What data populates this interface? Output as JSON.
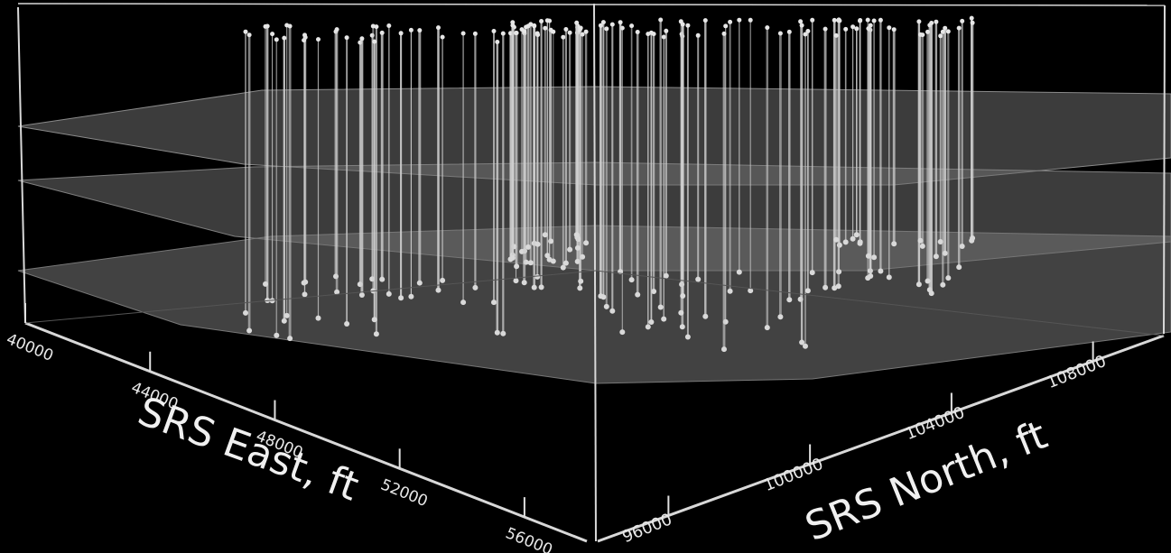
{
  "chart_data": {
    "type": "scatter",
    "subtype": "3d-well-stratigraphy",
    "title": "",
    "xlabel": "SRS East, ft",
    "ylabel": "SRS North, ft",
    "x_ticks": [
      "40000",
      "44000",
      "48000",
      "52000",
      "56000"
    ],
    "y_ticks": [
      "96000",
      "100000",
      "104000",
      "108000"
    ],
    "xlim": [
      40000,
      58000
    ],
    "ylim": [
      94000,
      110000
    ],
    "surfaces": 3,
    "background": "#000000",
    "surface_color": "#6e6e6e",
    "well_color": "#cfcfcf",
    "box_color": "#d8d8d8",
    "grid": false,
    "legend": "none"
  }
}
